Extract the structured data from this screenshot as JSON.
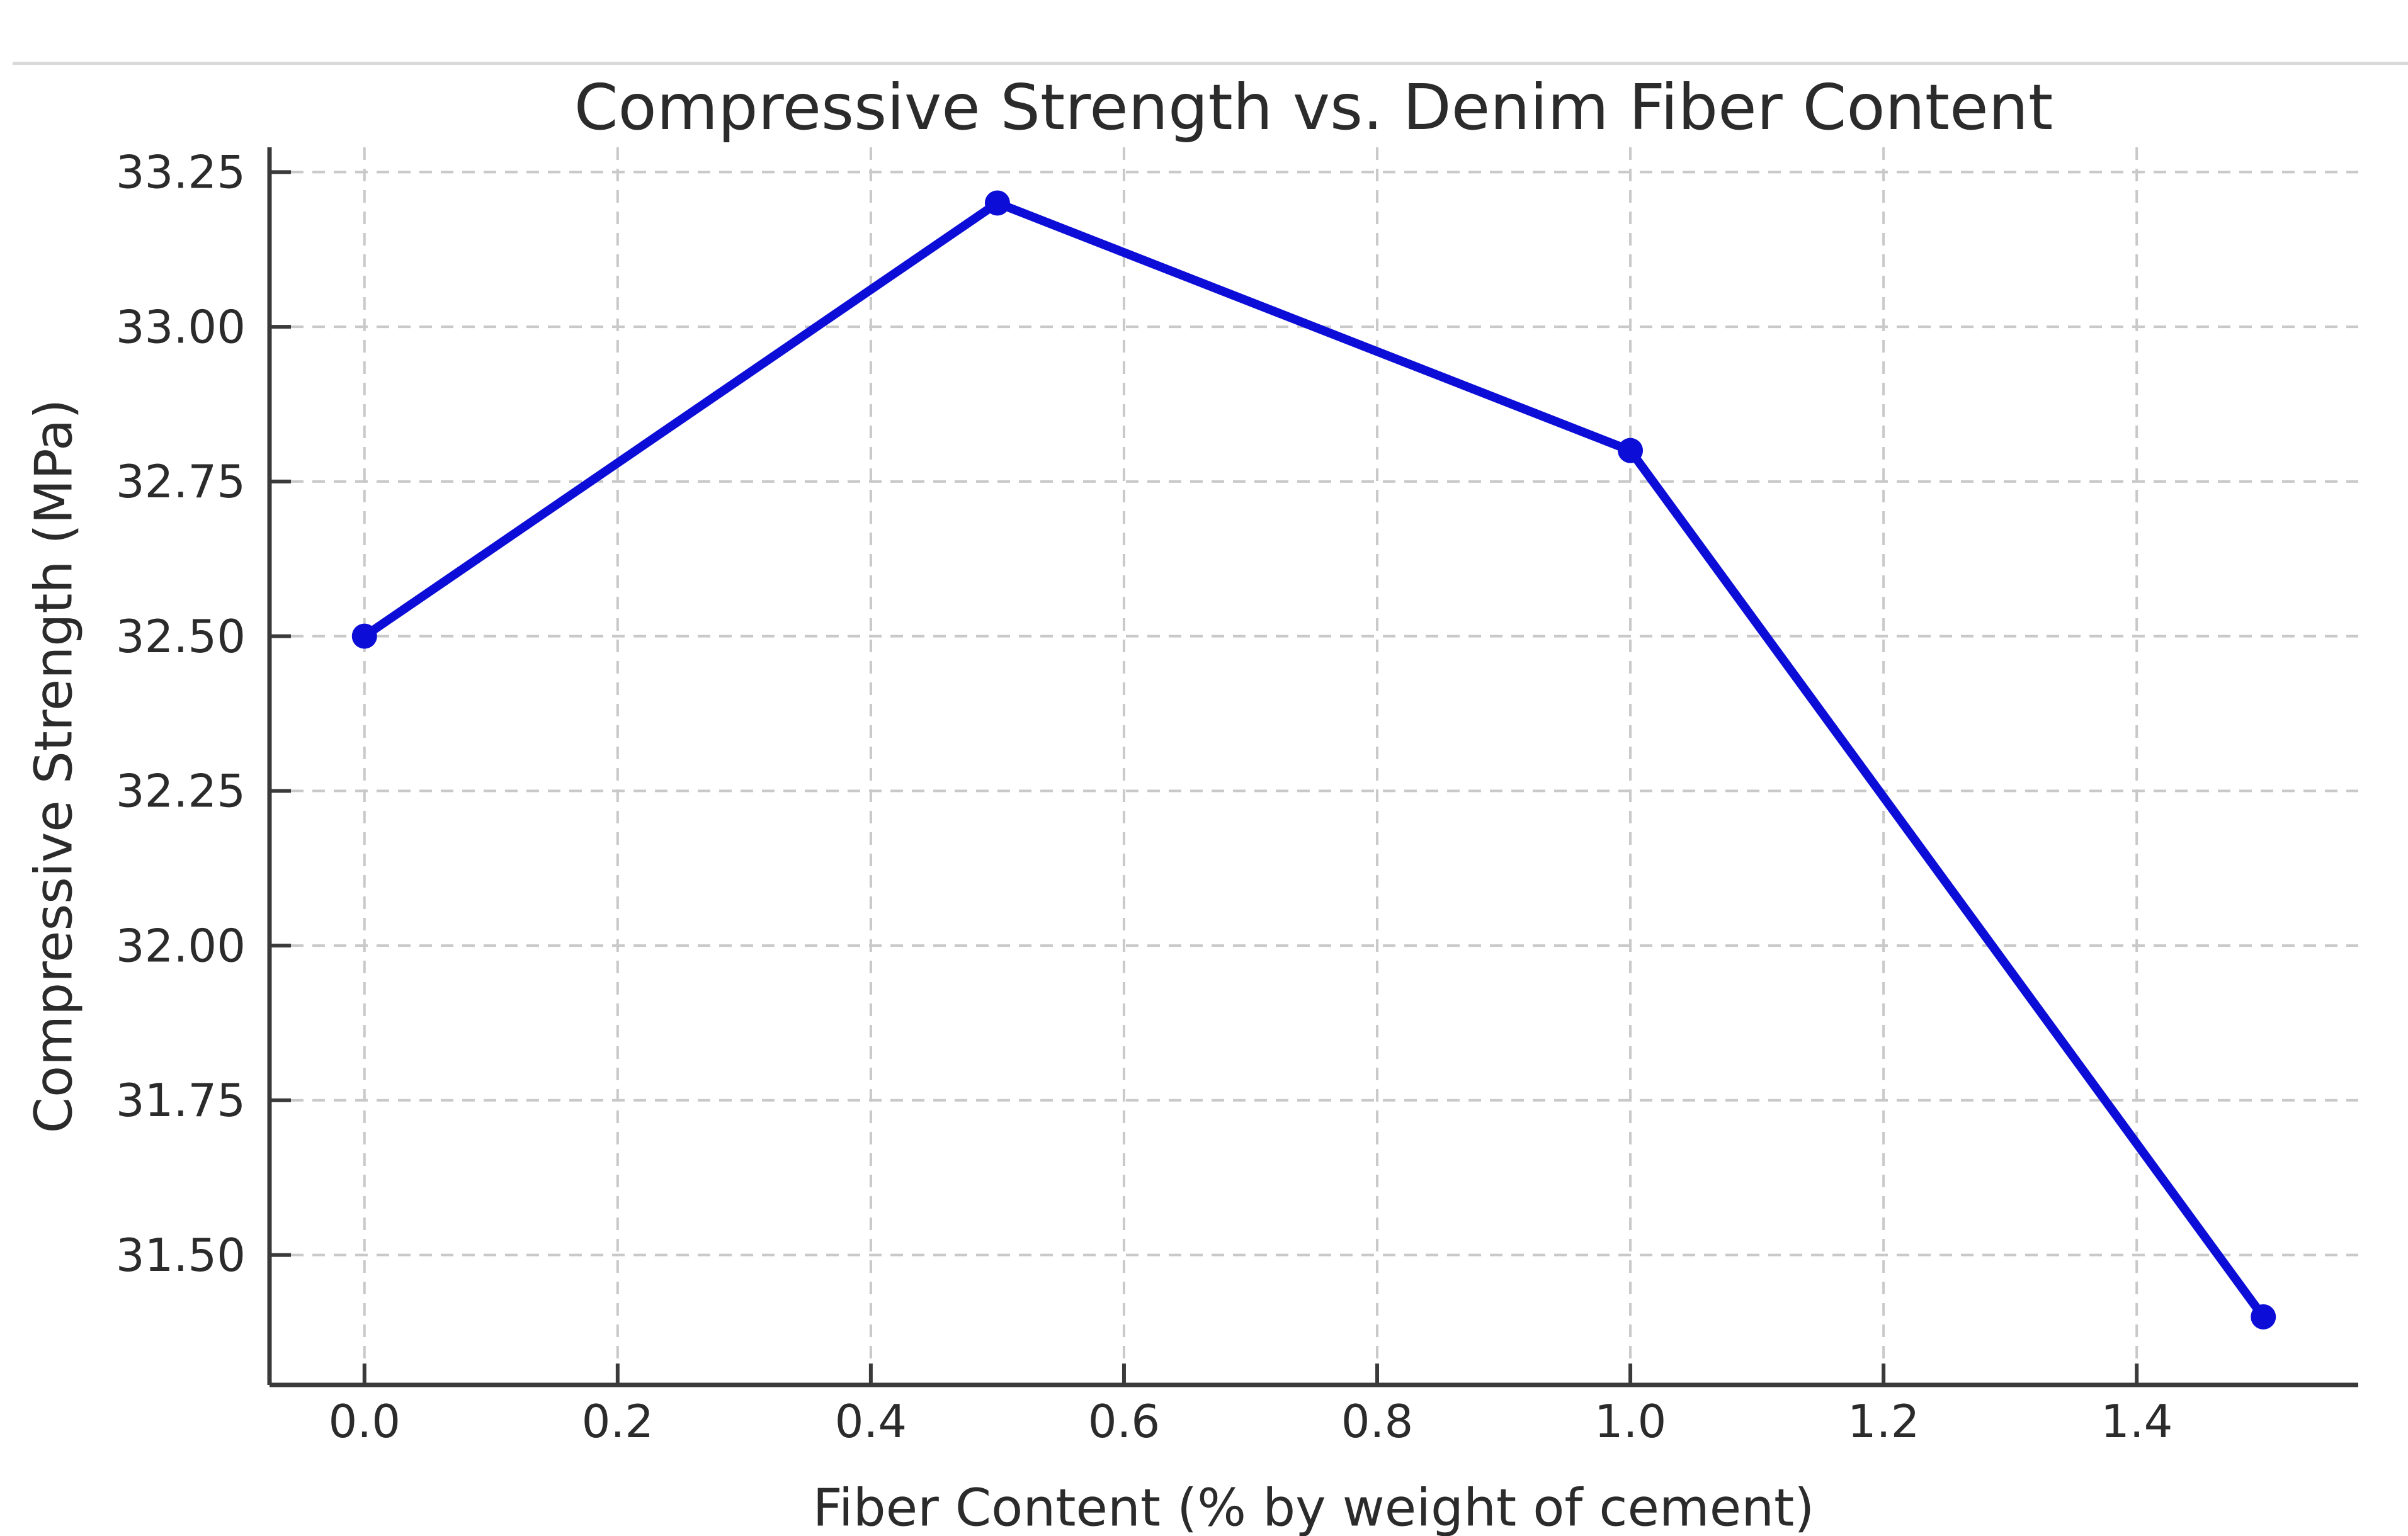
{
  "page": {
    "background": "#ffffff",
    "top_divider_color": "#d9d9d9"
  },
  "chart_data": {
    "type": "line",
    "title": "Compressive Strength vs. Denim Fiber Content",
    "xlabel": "Fiber Content (% by weight of cement)",
    "ylabel": "Compressive Strength (MPa)",
    "series": [
      {
        "name": "Compressive Strength",
        "x": [
          0.0,
          0.5,
          1.0,
          1.5
        ],
        "y": [
          32.5,
          33.2,
          32.8,
          31.4
        ]
      }
    ],
    "xlim": [
      -0.075,
      1.575
    ],
    "ylim": [
      31.29,
      33.29
    ],
    "xticks": {
      "values": [
        0.0,
        0.2,
        0.4,
        0.6,
        0.8,
        1.0,
        1.2,
        1.4
      ],
      "labels": [
        "0.0",
        "0.2",
        "0.4",
        "0.6",
        "0.8",
        "1.0",
        "1.2",
        "1.4"
      ]
    },
    "yticks": {
      "values": [
        31.5,
        31.75,
        32.0,
        32.25,
        32.5,
        32.75,
        33.0,
        33.25
      ],
      "labels": [
        "31.50",
        "31.75",
        "32.00",
        "32.25",
        "32.50",
        "32.75",
        "33.00",
        "33.25"
      ]
    },
    "grid": true,
    "legend": false,
    "style": {
      "line_color": "#0d0dd8",
      "marker": "circle",
      "marker_radius": 20,
      "line_width": 14,
      "grid_color": "#c9c9c9",
      "grid_line_style": "dashed",
      "spine_color": "#3a3a3a",
      "tick_color": "#3a3a3a",
      "text_color": "#2b2b2b",
      "background": "#ffffff"
    }
  }
}
